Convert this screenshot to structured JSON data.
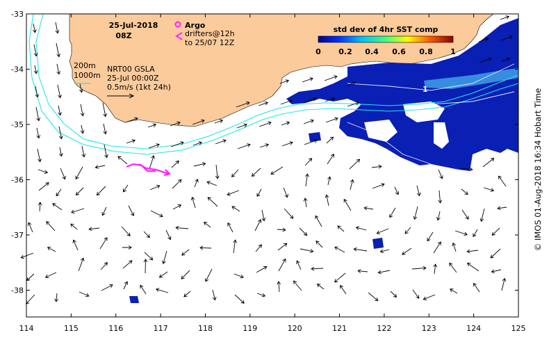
{
  "header": {
    "date": "25-Jul-2018",
    "time": "08Z"
  },
  "legend_argo": {
    "argo_label": "Argo",
    "drifters_label": "drifters@12h",
    "drifters_range": "to 25/07 12Z"
  },
  "contours": {
    "label_200": "200m",
    "label_1000": "1000m"
  },
  "product": {
    "line1": "NRT00 GSLA",
    "line2": "25-Jul 00:00Z",
    "scale_text": "0.5m/s (1kt 24h)"
  },
  "colorbar": {
    "title": "std dev of 4hr SST comp",
    "ticks": [
      "0",
      "0.2",
      "0.4",
      "0.6",
      "0.8",
      "1"
    ]
  },
  "axes": {
    "x_ticks": [
      "114",
      "115",
      "116",
      "117",
      "118",
      "119",
      "120",
      "121",
      "122",
      "123",
      "124",
      "125"
    ],
    "y_ticks": [
      "-33",
      "-34",
      "-35",
      "-36",
      "-37",
      "-38"
    ]
  },
  "contour_value_label": "1",
  "credit": "© IMOS 01-Aug-2018 16:34 Hobart Time",
  "colors": {
    "land": "#fccb9b",
    "isobath": "#22e6e6",
    "drifters": "#ff22ff",
    "sst_low": "#0a1fb4"
  }
}
